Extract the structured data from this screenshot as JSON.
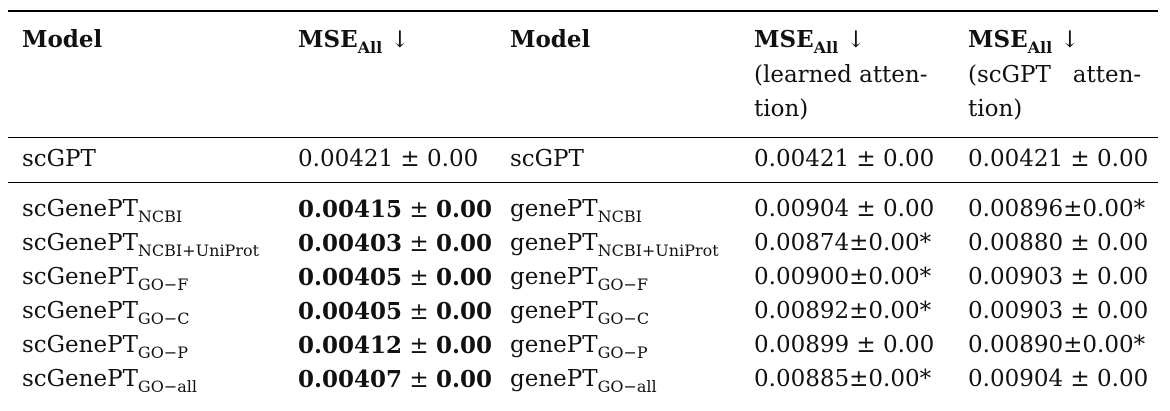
{
  "headers": {
    "model1": "Model",
    "mse1": "MSE",
    "mse1_sub": "All",
    "mse1_arrow": "↓",
    "model2": "Model",
    "mse2": "MSE",
    "mse2_sub": "All",
    "mse2_arrow": "↓",
    "mse2_note_line1": "(learned atten-",
    "mse2_note_line2": "tion)",
    "mse3": "MSE",
    "mse3_sub": "All",
    "mse3_arrow": "↓",
    "mse3_note_line1": "(scGPT   atten-",
    "mse3_note_line2": "tion)"
  },
  "baseline": {
    "model1": "scGPT",
    "mse1": "0.00421 ± 0.00",
    "model2": "scGPT",
    "mse2": "0.00421 ± 0.00",
    "mse3": "0.00421 ± 0.00"
  },
  "rows": [
    {
      "model1_base": "scGenePT",
      "model1_sub": "NCBI",
      "mse1_value": "0.00415",
      "mse1_pm": " ± ",
      "mse1_err": "0.00",
      "model2_base": "genePT",
      "model2_sub": "NCBI",
      "mse2": "0.00904 ± 0.00",
      "mse3": "0.00896±0.00*"
    },
    {
      "model1_base": "scGenePT",
      "model1_sub": "NCBI+UniProt",
      "mse1_value": "0.00403",
      "mse1_pm": " ± ",
      "mse1_err": "0.00",
      "model2_base": "genePT",
      "model2_sub": "NCBI+UniProt",
      "mse2": "0.00874±0.00*",
      "mse3": "0.00880 ± 0.00"
    },
    {
      "model1_base": "scGenePT",
      "model1_sub": "GO−F",
      "mse1_value": "0.00405",
      "mse1_pm": " ± ",
      "mse1_err": "0.00",
      "model2_base": "genePT",
      "model2_sub": "GO−F",
      "mse2": "0.00900±0.00*",
      "mse3": "0.00903 ± 0.00"
    },
    {
      "model1_base": "scGenePT",
      "model1_sub": "GO−C",
      "mse1_value": "0.00405",
      "mse1_pm": " ± ",
      "mse1_err": "0.00",
      "model2_base": "genePT",
      "model2_sub": "GO−C",
      "mse2": "0.00892±0.00*",
      "mse3": "0.00903 ± 0.00"
    },
    {
      "model1_base": "scGenePT",
      "model1_sub": "GO−P",
      "mse1_value": "0.00412",
      "mse1_pm": " ± ",
      "mse1_err": "0.00",
      "model2_base": "genePT",
      "model2_sub": "GO−P",
      "mse2": "0.00899 ± 0.00",
      "mse3": "0.00890±0.00*"
    },
    {
      "model1_base": "scGenePT",
      "model1_sub": "GO−all",
      "mse1_value": "0.00407",
      "mse1_pm": " ± ",
      "mse1_err": "0.00",
      "model2_base": "genePT",
      "model2_sub": "GO−all",
      "mse2": "0.00885±0.00*",
      "mse3": "0.00904 ± 0.00"
    }
  ]
}
